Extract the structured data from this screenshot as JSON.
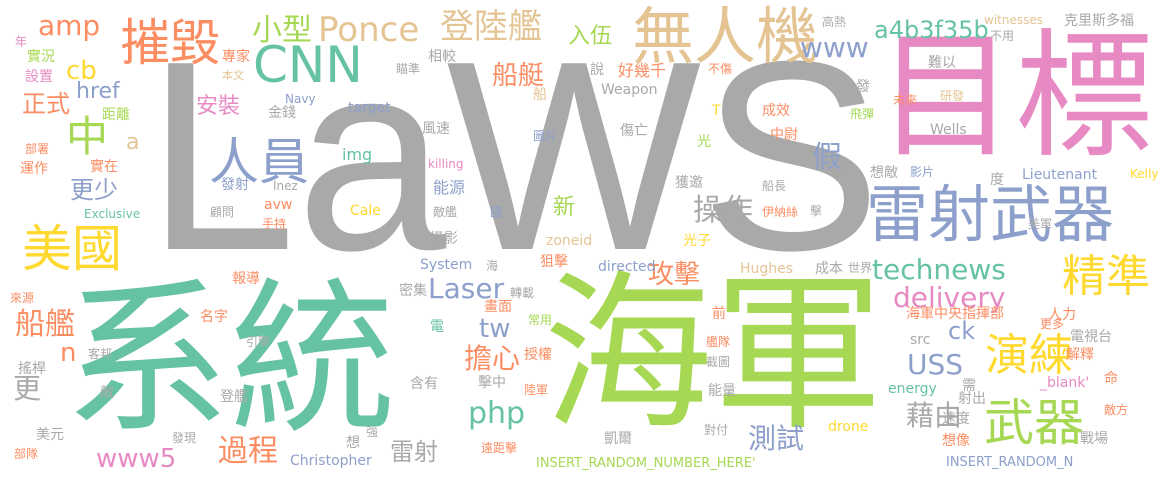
{
  "word_cloud": {
    "palette": {
      "gray": "#a9a9a9",
      "green": "#7ecba1",
      "pink": "#e78ac3",
      "lime": "#a6d854",
      "yellow": "#ffd92f",
      "tan": "#e5c494",
      "blue": "#8da0cb",
      "orange": "#fc8d62",
      "teal": "#66c2a5"
    },
    "words": [
      {
        "text": "LaWS",
        "color": "#a9a9a9"
      },
      {
        "text": "系統",
        "color": "#66c2a5"
      },
      {
        "text": "海軍",
        "color": "#a6d854"
      },
      {
        "text": "目標",
        "color": "#e78ac3"
      },
      {
        "text": "雷射武器",
        "color": "#8da0cb"
      },
      {
        "text": "無人機",
        "color": "#e5c494"
      },
      {
        "text": "CNN",
        "color": "#66c2a5"
      },
      {
        "text": "摧毀",
        "color": "#fc8d62"
      },
      {
        "text": "美國",
        "color": "#ffd92f"
      },
      {
        "text": "武器",
        "color": "#a6d854"
      },
      {
        "text": "人員",
        "color": "#8da0cb"
      },
      {
        "text": "中",
        "color": "#a6d854"
      },
      {
        "text": "精準",
        "color": "#ffd92f"
      },
      {
        "text": "演練",
        "color": "#ffd92f"
      },
      {
        "text": "Ponce",
        "color": "#e5c494"
      },
      {
        "text": "登陸艦",
        "color": "#e5c494"
      },
      {
        "text": "小型",
        "color": "#a6d854"
      },
      {
        "text": "amp",
        "color": "#fc8d62"
      },
      {
        "text": "cb",
        "color": "#ffd92f"
      },
      {
        "text": "href",
        "color": "#8da0cb"
      },
      {
        "text": "正式",
        "color": "#fc8d62"
      },
      {
        "text": "船艇",
        "color": "#fc8d62"
      },
      {
        "text": "www",
        "color": "#8da0cb"
      },
      {
        "text": "a4b3f35b",
        "color": "#66c2a5"
      },
      {
        "text": "入伍",
        "color": "#a6d854"
      },
      {
        "text": "安裝",
        "color": "#e78ac3"
      },
      {
        "text": "假",
        "color": "#8da0cb"
      },
      {
        "text": "更少",
        "color": "#8da0cb"
      },
      {
        "text": "a",
        "color": "#e5c494"
      },
      {
        "text": "操作",
        "color": "#a9a9a9"
      },
      {
        "text": "technews",
        "color": "#66c2a5"
      },
      {
        "text": "攻擊",
        "color": "#fc8d62"
      },
      {
        "text": "Laser",
        "color": "#8da0cb"
      },
      {
        "text": "delivery",
        "color": "#e78ac3"
      },
      {
        "text": "船艦",
        "color": "#fc8d62"
      },
      {
        "text": "tw",
        "color": "#8da0cb"
      },
      {
        "text": "ck",
        "color": "#8da0cb"
      },
      {
        "text": "USS",
        "color": "#8da0cb"
      },
      {
        "text": "擔心",
        "color": "#fc8d62"
      },
      {
        "text": "php",
        "color": "#66c2a5"
      },
      {
        "text": "更",
        "color": "#a9a9a9"
      },
      {
        "text": "n",
        "color": "#fc8d62"
      },
      {
        "text": "測試",
        "color": "#8da0cb"
      },
      {
        "text": "藉由",
        "color": "#a9a9a9"
      },
      {
        "text": "過程",
        "color": "#fc8d62"
      },
      {
        "text": "www5",
        "color": "#e78ac3"
      },
      {
        "text": "雷射",
        "color": "#a9a9a9"
      },
      {
        "text": "新",
        "color": "#a6d854"
      },
      {
        "text": "實況",
        "color": "#a6d854"
      },
      {
        "text": "設置",
        "color": "#e78ac3"
      },
      {
        "text": "距離",
        "color": "#a6d854"
      },
      {
        "text": "部署",
        "color": "#fc8d62"
      },
      {
        "text": "運作",
        "color": "#fc8d62"
      },
      {
        "text": "專家",
        "color": "#fc8d62"
      },
      {
        "text": "本文",
        "color": "#e5c494"
      },
      {
        "text": "瞄準",
        "color": "#a9a9a9"
      },
      {
        "text": "相較",
        "color": "#a9a9a9"
      },
      {
        "text": "說",
        "color": "#a9a9a9"
      },
      {
        "text": "好幾千",
        "color": "#fc8d62"
      },
      {
        "text": "不傷",
        "color": "#fc8d62"
      },
      {
        "text": "船",
        "color": "#e5c494"
      },
      {
        "text": "Weapon",
        "color": "#a9a9a9"
      },
      {
        "text": "Navy",
        "color": "#8da0cb"
      },
      {
        "text": "target",
        "color": "#8da0cb"
      },
      {
        "text": "金錢",
        "color": "#a9a9a9"
      },
      {
        "text": "風速",
        "color": "#a9a9a9"
      },
      {
        "text": "圖片",
        "color": "#8da0cb"
      },
      {
        "text": "傷亡",
        "color": "#a9a9a9"
      },
      {
        "text": "光",
        "color": "#a6d854"
      },
      {
        "text": "成效",
        "color": "#fc8d62"
      },
      {
        "text": "中尉",
        "color": "#fc8d62"
      },
      {
        "text": "T",
        "color": "#ffd92f"
      },
      {
        "text": "killing",
        "color": "#e78ac3"
      },
      {
        "text": "img",
        "color": "#66c2a5"
      },
      {
        "text": "實在",
        "color": "#fc8d62"
      },
      {
        "text": "發射",
        "color": "#8da0cb"
      },
      {
        "text": "Inez",
        "color": "#a9a9a9"
      },
      {
        "text": "avw",
        "color": "#fc8d62"
      },
      {
        "text": "Cale",
        "color": "#ffd92f"
      },
      {
        "text": "能源",
        "color": "#8da0cb"
      },
      {
        "text": "獲邀",
        "color": "#a9a9a9"
      },
      {
        "text": "敵艦",
        "color": "#a9a9a9"
      },
      {
        "text": "國",
        "color": "#8da0cb"
      },
      {
        "text": "想敵",
        "color": "#a9a9a9"
      },
      {
        "text": "影片",
        "color": "#8da0cb"
      },
      {
        "text": "船長",
        "color": "#a9a9a9"
      },
      {
        "text": "伊納絲",
        "color": "#fc8d62"
      },
      {
        "text": "擊",
        "color": "#a9a9a9"
      },
      {
        "text": "Lieutenant",
        "color": "#8da0cb"
      },
      {
        "text": "Kelly",
        "color": "#ffd92f"
      },
      {
        "text": "Wells",
        "color": "#a9a9a9"
      },
      {
        "text": "度",
        "color": "#a9a9a9"
      },
      {
        "text": "高熱",
        "color": "#a9a9a9"
      },
      {
        "text": "witnesses",
        "color": "#e5c494"
      },
      {
        "text": "克里斯多福",
        "color": "#a9a9a9"
      },
      {
        "text": "不用",
        "color": "#a9a9a9"
      },
      {
        "text": "難以",
        "color": "#a9a9a9"
      },
      {
        "text": "發",
        "color": "#a9a9a9"
      },
      {
        "text": "未來",
        "color": "#fc8d62"
      },
      {
        "text": "研發",
        "color": "#e5c494"
      },
      {
        "text": "飛彈",
        "color": "#a6d854"
      },
      {
        "text": "美軍",
        "color": "#a9a9a9"
      },
      {
        "text": "年",
        "color": "#e78ac3"
      },
      {
        "text": "顧問",
        "color": "#a9a9a9"
      },
      {
        "text": "手持",
        "color": "#fc8d62"
      },
      {
        "text": "Exclusive",
        "color": "#66c2a5"
      },
      {
        "text": "攝影",
        "color": "#a9a9a9"
      },
      {
        "text": "zoneid",
        "color": "#e5c494"
      },
      {
        "text": "光子",
        "color": "#ffd92f"
      },
      {
        "text": "System",
        "color": "#8da0cb"
      },
      {
        "text": "海",
        "color": "#a9a9a9"
      },
      {
        "text": "狙擊",
        "color": "#fc8d62"
      },
      {
        "text": "directed",
        "color": "#8da0cb"
      },
      {
        "text": "Hughes",
        "color": "#e5c494"
      },
      {
        "text": "成本",
        "color": "#a9a9a9"
      },
      {
        "text": "世界",
        "color": "#a9a9a9"
      },
      {
        "text": "報導",
        "color": "#fc8d62"
      },
      {
        "text": "密集",
        "color": "#a9a9a9"
      },
      {
        "text": "轉載",
        "color": "#a9a9a9"
      },
      {
        "text": "畫面",
        "color": "#fc8d62"
      },
      {
        "text": "常用",
        "color": "#a6d854"
      },
      {
        "text": "前",
        "color": "#fc8d62"
      },
      {
        "text": "海軍中央指揮部",
        "color": "#fc8d62"
      },
      {
        "text": "人力",
        "color": "#fc8d62"
      },
      {
        "text": "更多",
        "color": "#fc8d62"
      },
      {
        "text": "來源",
        "color": "#fc8d62"
      },
      {
        "text": "名字",
        "color": "#fc8d62"
      },
      {
        "text": "電",
        "color": "#66c2a5"
      },
      {
        "text": "引擎",
        "color": "#a9a9a9"
      },
      {
        "text": "艦隊",
        "color": "#fc8d62"
      },
      {
        "text": "src",
        "color": "#a9a9a9"
      },
      {
        "text": "電視台",
        "color": "#a9a9a9"
      },
      {
        "text": "客邦",
        "color": "#a9a9a9"
      },
      {
        "text": "授權",
        "color": "#fc8d62"
      },
      {
        "text": "截圖",
        "color": "#a9a9a9"
      },
      {
        "text": "解釋",
        "color": "#fc8d62"
      },
      {
        "text": "搖桿",
        "color": "#a9a9a9"
      },
      {
        "text": "擊中",
        "color": "#a9a9a9"
      },
      {
        "text": "含有",
        "color": "#a9a9a9"
      },
      {
        "text": "需",
        "color": "#a9a9a9"
      },
      {
        "text": "_blank'",
        "color": "#e78ac3"
      },
      {
        "text": "命",
        "color": "#fc8d62"
      },
      {
        "text": "登艦",
        "color": "#a9a9a9"
      },
      {
        "text": "陸軍",
        "color": "#fc8d62"
      },
      {
        "text": "能量",
        "color": "#a9a9a9"
      },
      {
        "text": "energy",
        "color": "#66c2a5"
      },
      {
        "text": "射出",
        "color": "#a9a9a9"
      },
      {
        "text": "敵方",
        "color": "#fc8d62"
      },
      {
        "text": "敵",
        "color": "#a9a9a9"
      },
      {
        "text": "速度",
        "color": "#a9a9a9"
      },
      {
        "text": "美元",
        "color": "#a9a9a9"
      },
      {
        "text": "強",
        "color": "#a9a9a9"
      },
      {
        "text": "凱爾",
        "color": "#a9a9a9"
      },
      {
        "text": "對付",
        "color": "#a9a9a9"
      },
      {
        "text": "drone",
        "color": "#ffd92f"
      },
      {
        "text": "想像",
        "color": "#fc8d62"
      },
      {
        "text": "戰場",
        "color": "#a9a9a9"
      },
      {
        "text": "發現",
        "color": "#a9a9a9"
      },
      {
        "text": "想",
        "color": "#a9a9a9"
      },
      {
        "text": "部隊",
        "color": "#fc8d62"
      },
      {
        "text": "Christopher",
        "color": "#8da0cb"
      },
      {
        "text": "遠距擊",
        "color": "#fc8d62"
      },
      {
        "text": "INSERT_RANDOM_NUMBER_HERE'",
        "color": "#a6d854"
      },
      {
        "text": "INSERT_RANDOM_N",
        "color": "#8da0cb"
      }
    ]
  }
}
